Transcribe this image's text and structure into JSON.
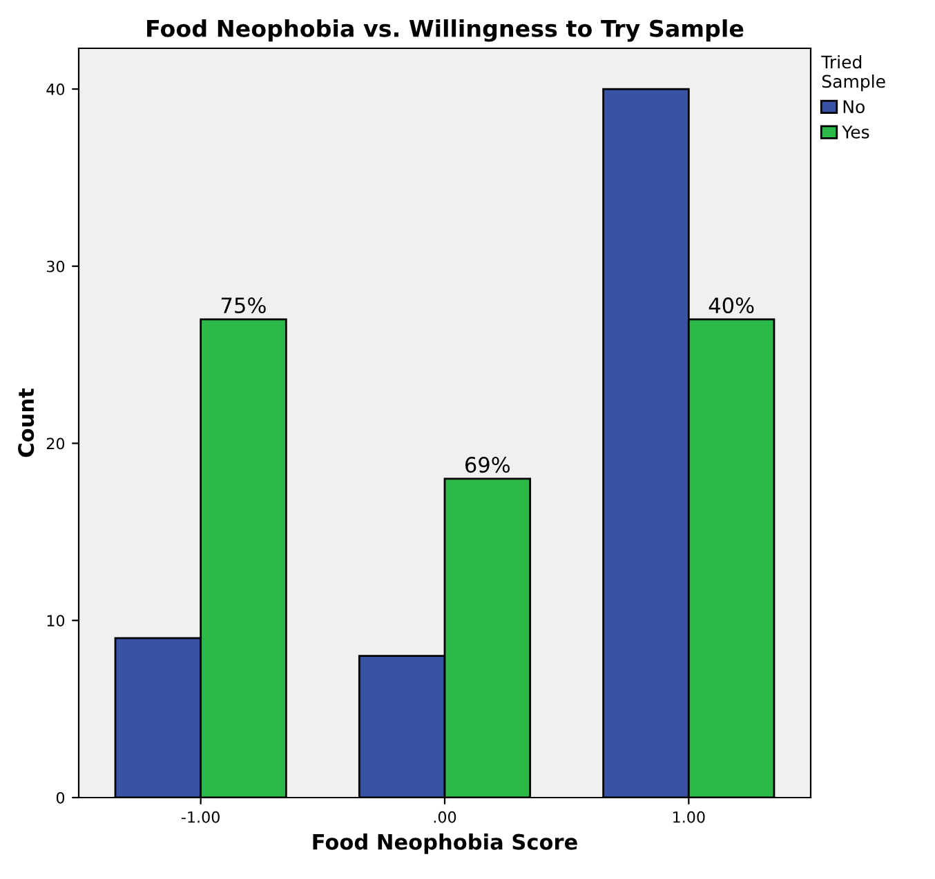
{
  "chart_data": {
    "type": "bar",
    "title": "Food Neophobia vs. Willingness to Try Sample",
    "xlabel": "Food Neophobia Score",
    "ylabel": "Count",
    "legend_title": "Tried\nSample",
    "categories": [
      "-1.00",
      ".00",
      "1.00"
    ],
    "series": [
      {
        "name": "No",
        "color": "#3953a4",
        "values": [
          9,
          8,
          40
        ]
      },
      {
        "name": "Yes",
        "color": "#2db84a",
        "values": [
          27,
          18,
          27
        ]
      }
    ],
    "annotations": [
      {
        "text": "75%",
        "x": "-1.00",
        "y": 27
      },
      {
        "text": "69%",
        "x": ".00",
        "y": 18
      },
      {
        "text": "40%",
        "x": "1.00",
        "y": 27
      }
    ],
    "ylim": [
      0,
      42.3
    ],
    "yticks": [
      0,
      10,
      20,
      30,
      40
    ],
    "grid": false,
    "legend": "top right"
  }
}
